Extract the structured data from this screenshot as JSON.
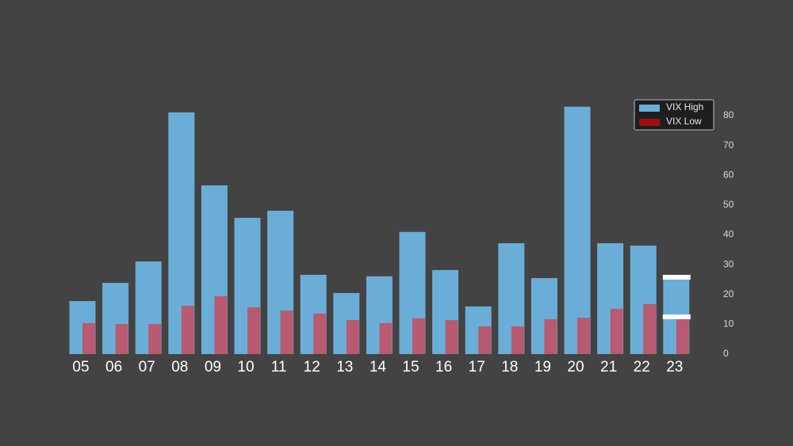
{
  "chart_data": {
    "type": "bar",
    "categories": [
      "05",
      "06",
      "07",
      "08",
      "09",
      "10",
      "11",
      "12",
      "13",
      "14",
      "15",
      "16",
      "17",
      "18",
      "19",
      "20",
      "21",
      "22",
      "23"
    ],
    "series": [
      {
        "name": "VIX High",
        "color": "#6aaed8",
        "values": [
          17.8,
          23.9,
          31.1,
          81.1,
          56.6,
          45.7,
          48.1,
          26.6,
          20.5,
          26.1,
          41.0,
          28.2,
          16.0,
          37.2,
          25.5,
          83.0,
          37.2,
          36.4,
          25.8
        ]
      },
      {
        "name": "VIX Low",
        "color": "#b85a70",
        "values": [
          10.4,
          10.1,
          10.1,
          16.2,
          19.4,
          15.7,
          14.6,
          13.6,
          11.4,
          10.4,
          12.0,
          11.4,
          9.3,
          9.3,
          11.7,
          12.2,
          15.2,
          16.8,
          12.5
        ]
      }
    ],
    "ylim": [
      0,
      80
    ],
    "yticks": [
      0,
      10,
      20,
      30,
      40,
      50,
      60,
      70,
      80
    ],
    "y_axis_side": "right",
    "legend": "upper right",
    "highlight_color": "#ffffff"
  }
}
